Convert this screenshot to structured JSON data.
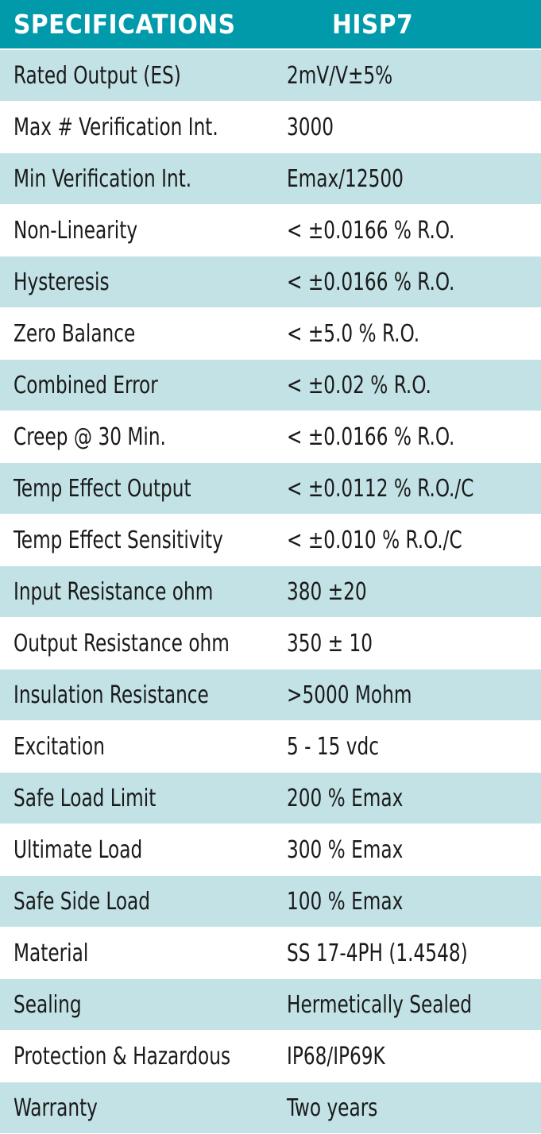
{
  "colors": {
    "header_bg": "#009aaa",
    "header_text": "#ffffff",
    "stripe_bg": "#c3e2e6",
    "row_text": "#1a1a1a"
  },
  "table": {
    "header": {
      "label": "SPECIFICATIONS",
      "model": "HISP7"
    },
    "rows": [
      {
        "label": "Rated Output (ES)",
        "value": "2mV/V±5%"
      },
      {
        "label": "Max # Verification Int.",
        "value": "3000"
      },
      {
        "label": "Min Verification Int.",
        "value": "Emax/12500"
      },
      {
        "label": "Non-Linearity",
        "value": "< ±0.0166 % R.O."
      },
      {
        "label": "Hysteresis",
        "value": "< ±0.0166 % R.O."
      },
      {
        "label": "Zero Balance",
        "value": "< ±5.0 % R.O."
      },
      {
        "label": "Combined Error",
        "value": "< ±0.02 % R.O."
      },
      {
        "label": "Creep @ 30 Min.",
        "value": "< ±0.0166 % R.O."
      },
      {
        "label": "Temp Effect Output",
        "value": "< ±0.0112 % R.O./C"
      },
      {
        "label": "Temp Effect Sensitivity",
        "value": "< ±0.010 % R.O./C"
      },
      {
        "label": "Input Resistance ohm",
        "value": "380 ±20"
      },
      {
        "label": "Output Resistance ohm",
        "value": "350 ± 10"
      },
      {
        "label": "Insulation Resistance",
        "value": ">5000 Mohm"
      },
      {
        "label": "Excitation",
        "value": "5 - 15 vdc"
      },
      {
        "label": "Safe Load Limit",
        "value": "200 % Emax"
      },
      {
        "label": "Ultimate Load",
        "value": "300 % Emax"
      },
      {
        "label": "Safe Side Load",
        "value": "100 % Emax"
      },
      {
        "label": "Material",
        "value": "SS 17-4PH (1.4548)"
      },
      {
        "label": "Sealing",
        "value": "Hermetically Sealed"
      },
      {
        "label": "Protection & Hazardous",
        "value": "IP68/IP69K"
      },
      {
        "label": "Warranty",
        "value": "Two years"
      }
    ]
  }
}
